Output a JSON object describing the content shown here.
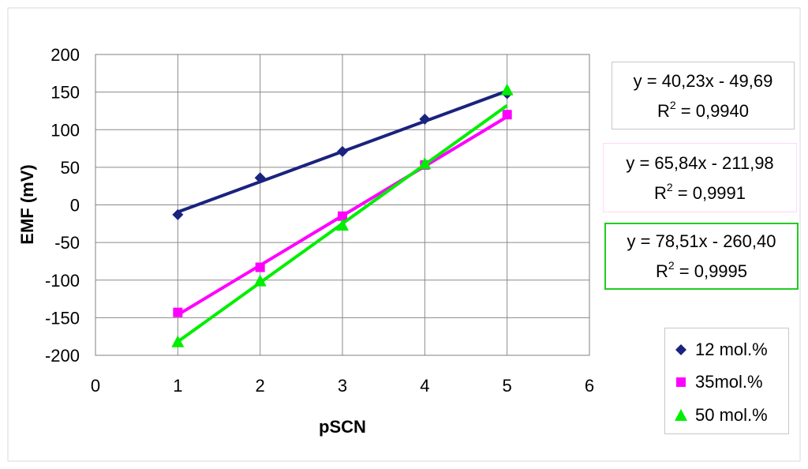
{
  "chart_data": {
    "type": "scatter",
    "xlabel": "pSCN",
    "ylabel": "EMF (mV)",
    "xlim": [
      0,
      6
    ],
    "ylim": [
      -200,
      200
    ],
    "x_ticks": [
      "0",
      "1",
      "2",
      "3",
      "4",
      "5",
      "6"
    ],
    "y_ticks": [
      "200",
      "150",
      "100",
      "50",
      "0",
      "-50",
      "-100",
      "-150",
      "-200"
    ],
    "grid": "major gridlines on both axes",
    "legend_position": "bottom-right",
    "series": [
      {
        "name": "12 mol.%",
        "color": "#1a237e",
        "marker": "diamond",
        "x": [
          1,
          2,
          3,
          4,
          5
        ],
        "y": [
          -13,
          36,
          71,
          114,
          148
        ],
        "trendline": {
          "slope": 40.23,
          "intercept": -49.69
        },
        "equation": "y = 40,23x - 49,69",
        "r2_label": "R",
        "r2_value": " = 0,9940",
        "box_border": "#c8c8c8"
      },
      {
        "name": "35mol.%",
        "color": "#ff00ff",
        "marker": "square",
        "x": [
          1,
          2,
          3,
          4,
          5
        ],
        "y": [
          -143,
          -83,
          -15,
          53,
          120
        ],
        "trendline": {
          "slope": 65.84,
          "intercept": -211.98
        },
        "equation": "y = 65,84x - 211,98",
        "r2_label": "R",
        "r2_value": " = 0,9991",
        "box_border": "#ffd6ff"
      },
      {
        "name": "50 mol.%",
        "color": "#00ee00",
        "marker": "triangle",
        "x": [
          1,
          2,
          3,
          4,
          5
        ],
        "y": [
          -183,
          -102,
          -28,
          54,
          152
        ],
        "trendline": {
          "slope": 78.51,
          "intercept": -260.4
        },
        "equation": "y = 78,51x - 260,40",
        "r2_label": "R",
        "r2_value": " = 0,9995",
        "box_border": "#22cc22"
      }
    ]
  }
}
